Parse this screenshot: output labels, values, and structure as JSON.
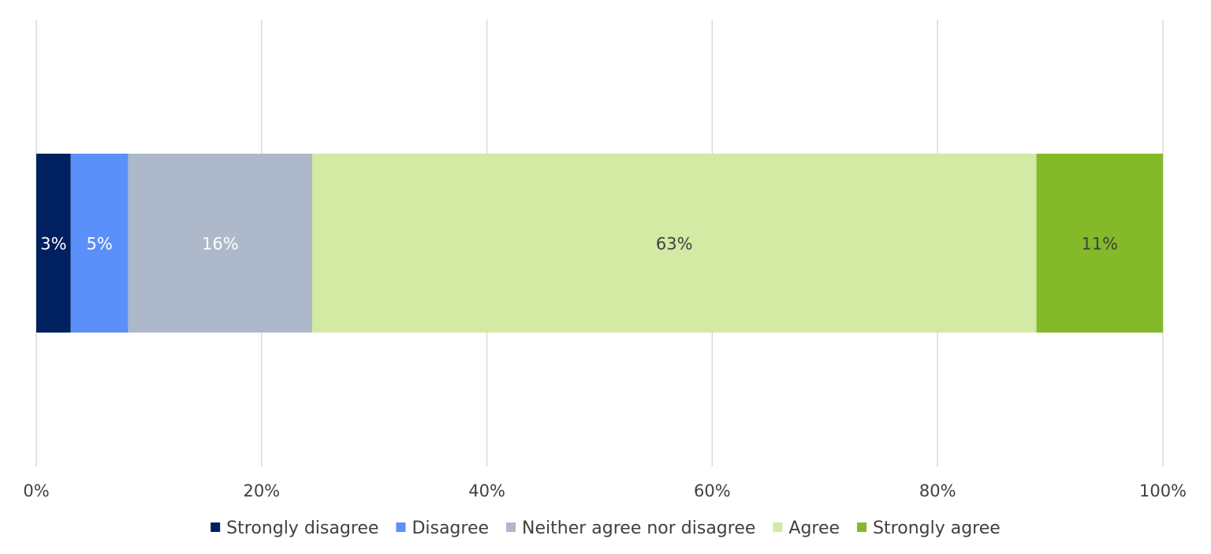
{
  "chart_data": {
    "type": "bar",
    "orientation": "horizontal",
    "stacked": true,
    "categories": [
      ""
    ],
    "series": [
      {
        "name": "Strongly disagree",
        "values": [
          3
        ],
        "label": "3%",
        "color": "#002060",
        "label_color": "#ffffff"
      },
      {
        "name": "Disagree",
        "values": [
          5
        ],
        "label": "5%",
        "color": "#5b8ff9",
        "label_color": "#ffffff"
      },
      {
        "name": "Neither agree nor disagree",
        "values": [
          16
        ],
        "label": "16%",
        "color": "#adb9ca",
        "label_color": "#ffffff"
      },
      {
        "name": "Agree",
        "values": [
          63
        ],
        "label": "63%",
        "color": "#d2eaa4",
        "label_color": "#404040"
      },
      {
        "name": "Strongly agree",
        "values": [
          11
        ],
        "label": "11%",
        "color": "#84b929",
        "label_color": "#404040"
      }
    ],
    "xlim": [
      0,
      100
    ],
    "x_ticks": [
      "0%",
      "20%",
      "40%",
      "60%",
      "80%",
      "100%"
    ],
    "x_tick_values": [
      0,
      20,
      40,
      60,
      80,
      100
    ],
    "grid": "vertical",
    "legend": "bottom",
    "title": "",
    "xlabel": "",
    "ylabel": ""
  }
}
